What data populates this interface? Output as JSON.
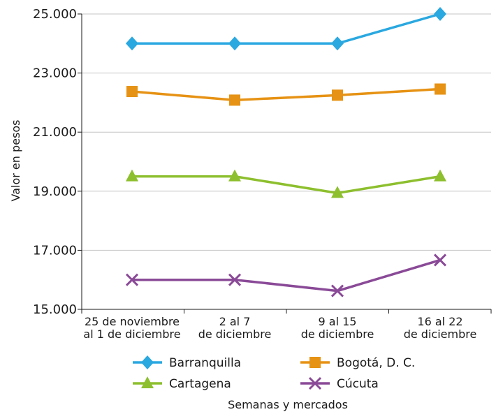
{
  "chart_data": {
    "type": "line",
    "categories": [
      [
        "25 de noviembre",
        "al 1 de diciembre"
      ],
      [
        "2 al 7",
        "de diciembre"
      ],
      [
        "9 al 15",
        "de diciembre"
      ],
      [
        "16 al 22",
        "de diciembre"
      ]
    ],
    "ylabel": "Valor en pesos",
    "xlabel": "Semanas y mercados",
    "ylim": [
      15000,
      25000
    ],
    "yticks": [
      15000,
      17000,
      19000,
      21000,
      23000,
      25000
    ],
    "ytick_labels": [
      "15.000",
      "17.000",
      "19.000",
      "21.000",
      "23.000",
      "25.000"
    ],
    "grid": "horizontal",
    "legend_position": "bottom",
    "series": [
      {
        "name": "Barranquilla",
        "values": [
          24000,
          24000,
          24000,
          25000
        ],
        "color": "#2aa8e0",
        "marker": "diamond"
      },
      {
        "name": "Bogotá, D. C.",
        "values": [
          22375,
          22083,
          22250,
          22458
        ],
        "color": "#e69214",
        "marker": "square"
      },
      {
        "name": "Cartagena",
        "values": [
          19500,
          19500,
          18938,
          19500
        ],
        "color": "#8dbf2e",
        "marker": "triangle"
      },
      {
        "name": "Cúcuta",
        "values": [
          16000,
          16000,
          15625,
          16667
        ],
        "color": "#8a4a97",
        "marker": "x"
      }
    ]
  }
}
